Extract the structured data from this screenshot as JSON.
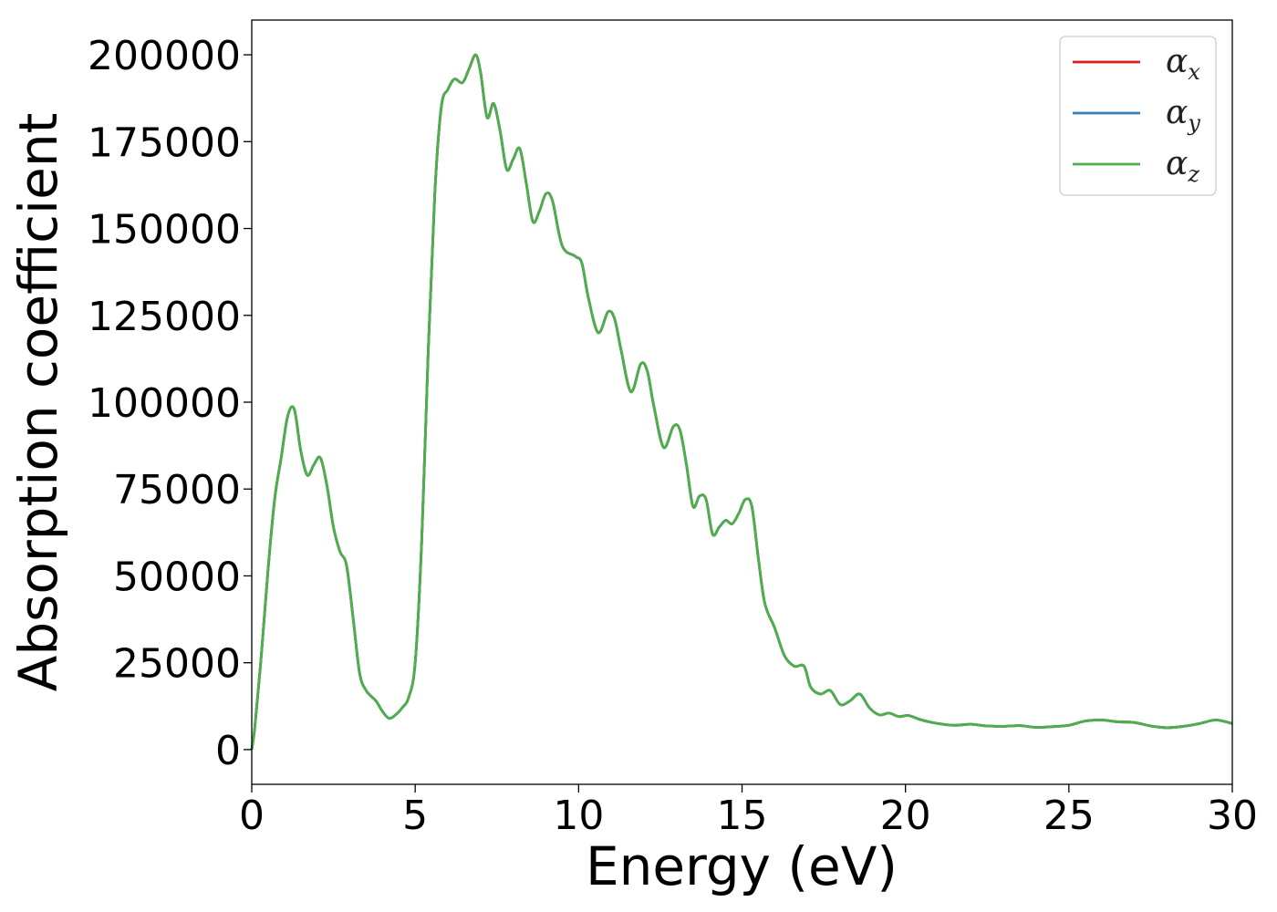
{
  "chart_data": {
    "type": "line",
    "xlabel": "Energy (eV)",
    "ylabel": "Absorption coefficient",
    "xlim": [
      0,
      30
    ],
    "ylim": [
      -10000,
      210000
    ],
    "xticks": [
      0,
      5,
      10,
      15,
      20,
      25,
      30
    ],
    "yticks": [
      0,
      25000,
      50000,
      75000,
      100000,
      125000,
      150000,
      175000,
      200000
    ],
    "grid": false,
    "legend_position": "top-right",
    "series": [
      {
        "name": "α",
        "subscript": "x",
        "color": "#e41a1c",
        "x": [
          0,
          0.1,
          0.3,
          0.5,
          0.7,
          0.9,
          1.1,
          1.3,
          1.5,
          1.7,
          1.9,
          2.1,
          2.3,
          2.5,
          2.7,
          2.9,
          3.1,
          3.3,
          3.5,
          3.8,
          4.0,
          4.2,
          4.4,
          4.6,
          4.8,
          5.0,
          5.2,
          5.4,
          5.6,
          5.8,
          6.0,
          6.2,
          6.45,
          6.65,
          6.85,
          7.0,
          7.2,
          7.4,
          7.6,
          7.8,
          8.0,
          8.2,
          8.4,
          8.6,
          8.8,
          9.0,
          9.2,
          9.5,
          9.9,
          10.1,
          10.3,
          10.6,
          10.9,
          11.1,
          11.3,
          11.6,
          11.9,
          12.1,
          12.3,
          12.6,
          12.9,
          13.1,
          13.3,
          13.5,
          13.7,
          13.9,
          14.1,
          14.3,
          14.5,
          14.7,
          14.9,
          15.1,
          15.3,
          15.5,
          15.7,
          16.0,
          16.3,
          16.6,
          16.9,
          17.1,
          17.4,
          17.7,
          18.0,
          18.3,
          18.6,
          18.9,
          19.2,
          19.5,
          19.8,
          20.1,
          20.5,
          21.0,
          21.5,
          22.0,
          22.5,
          23.0,
          23.5,
          24.0,
          24.5,
          25.0,
          25.5,
          26.0,
          26.5,
          27.0,
          27.5,
          28.0,
          28.5,
          29.0,
          29.5,
          30.0
        ],
        "y": [
          0,
          7000,
          28000,
          52000,
          72000,
          84000,
          96000,
          98000,
          86000,
          79000,
          82000,
          84000,
          76000,
          64000,
          57000,
          53000,
          38000,
          22000,
          17000,
          14000,
          11000,
          9000,
          10000,
          12000,
          15000,
          25000,
          60000,
          115000,
          160000,
          185000,
          190000,
          193000,
          192000,
          196000,
          200000,
          195000,
          182000,
          186000,
          178000,
          167000,
          170000,
          173000,
          163000,
          152000,
          155000,
          160000,
          158000,
          145000,
          142000,
          140000,
          130000,
          120000,
          126000,
          124000,
          115000,
          103000,
          111000,
          109000,
          99000,
          87000,
          93000,
          92000,
          82000,
          70000,
          73000,
          72000,
          62000,
          64000,
          66000,
          65000,
          68000,
          72000,
          70000,
          55000,
          42000,
          35000,
          27000,
          24000,
          24000,
          18000,
          16000,
          17000,
          13000,
          14000,
          16000,
          12000,
          10000,
          10500,
          9500,
          9800,
          8500,
          7500,
          7000,
          7300,
          6800,
          6700,
          6900,
          6400,
          6600,
          7000,
          8200,
          8500,
          8000,
          7800,
          6800,
          6300,
          6700,
          7500,
          8500,
          7500
        ]
      },
      {
        "name": "α",
        "subscript": "y",
        "color": "#377eb8",
        "x": [
          0,
          0.1,
          0.3,
          0.5,
          0.7,
          0.9,
          1.1,
          1.3,
          1.5,
          1.7,
          1.9,
          2.1,
          2.3,
          2.5,
          2.7,
          2.9,
          3.1,
          3.3,
          3.5,
          3.8,
          4.0,
          4.2,
          4.4,
          4.6,
          4.8,
          5.0,
          5.2,
          5.4,
          5.6,
          5.8,
          6.0,
          6.2,
          6.45,
          6.65,
          6.85,
          7.0,
          7.2,
          7.4,
          7.6,
          7.8,
          8.0,
          8.2,
          8.4,
          8.6,
          8.8,
          9.0,
          9.2,
          9.5,
          9.9,
          10.1,
          10.3,
          10.6,
          10.9,
          11.1,
          11.3,
          11.6,
          11.9,
          12.1,
          12.3,
          12.6,
          12.9,
          13.1,
          13.3,
          13.5,
          13.7,
          13.9,
          14.1,
          14.3,
          14.5,
          14.7,
          14.9,
          15.1,
          15.3,
          15.5,
          15.7,
          16.0,
          16.3,
          16.6,
          16.9,
          17.1,
          17.4,
          17.7,
          18.0,
          18.3,
          18.6,
          18.9,
          19.2,
          19.5,
          19.8,
          20.1,
          20.5,
          21.0,
          21.5,
          22.0,
          22.5,
          23.0,
          23.5,
          24.0,
          24.5,
          25.0,
          25.5,
          26.0,
          26.5,
          27.0,
          27.5,
          28.0,
          28.5,
          29.0,
          29.5,
          30.0
        ],
        "y": [
          0,
          7000,
          28000,
          52000,
          72000,
          84000,
          96000,
          98000,
          86000,
          79000,
          82000,
          84000,
          76000,
          64000,
          57000,
          53000,
          38000,
          22000,
          17000,
          14000,
          11000,
          9000,
          10000,
          12000,
          15000,
          25000,
          60000,
          115000,
          160000,
          185000,
          190000,
          193000,
          192000,
          196000,
          200000,
          195000,
          182000,
          186000,
          178000,
          167000,
          170000,
          173000,
          163000,
          152000,
          155000,
          160000,
          158000,
          145000,
          142000,
          140000,
          130000,
          120000,
          126000,
          124000,
          115000,
          103000,
          111000,
          109000,
          99000,
          87000,
          93000,
          92000,
          82000,
          70000,
          73000,
          72000,
          62000,
          64000,
          66000,
          65000,
          68000,
          72000,
          70000,
          55000,
          42000,
          35000,
          27000,
          24000,
          24000,
          18000,
          16000,
          17000,
          13000,
          14000,
          16000,
          12000,
          10000,
          10500,
          9500,
          9800,
          8500,
          7500,
          7000,
          7300,
          6800,
          6700,
          6900,
          6400,
          6600,
          7000,
          8200,
          8500,
          8000,
          7800,
          6800,
          6300,
          6700,
          7500,
          8500,
          7500
        ]
      },
      {
        "name": "α",
        "subscript": "z",
        "color": "#4daf4a",
        "x": [
          0,
          0.1,
          0.3,
          0.5,
          0.7,
          0.9,
          1.1,
          1.3,
          1.5,
          1.7,
          1.9,
          2.1,
          2.3,
          2.5,
          2.7,
          2.9,
          3.1,
          3.3,
          3.5,
          3.8,
          4.0,
          4.2,
          4.4,
          4.6,
          4.8,
          5.0,
          5.2,
          5.4,
          5.6,
          5.8,
          6.0,
          6.2,
          6.45,
          6.65,
          6.85,
          7.0,
          7.2,
          7.4,
          7.6,
          7.8,
          8.0,
          8.2,
          8.4,
          8.6,
          8.8,
          9.0,
          9.2,
          9.5,
          9.9,
          10.1,
          10.3,
          10.6,
          10.9,
          11.1,
          11.3,
          11.6,
          11.9,
          12.1,
          12.3,
          12.6,
          12.9,
          13.1,
          13.3,
          13.5,
          13.7,
          13.9,
          14.1,
          14.3,
          14.5,
          14.7,
          14.9,
          15.1,
          15.3,
          15.5,
          15.7,
          16.0,
          16.3,
          16.6,
          16.9,
          17.1,
          17.4,
          17.7,
          18.0,
          18.3,
          18.6,
          18.9,
          19.2,
          19.5,
          19.8,
          20.1,
          20.5,
          21.0,
          21.5,
          22.0,
          22.5,
          23.0,
          23.5,
          24.0,
          24.5,
          25.0,
          25.5,
          26.0,
          26.5,
          27.0,
          27.5,
          28.0,
          28.5,
          29.0,
          29.5,
          30.0
        ],
        "y": [
          0,
          7000,
          28000,
          52000,
          72000,
          84000,
          96000,
          98000,
          86000,
          79000,
          82000,
          84000,
          76000,
          64000,
          57000,
          53000,
          38000,
          22000,
          17000,
          14000,
          11000,
          9000,
          10000,
          12000,
          15000,
          25000,
          60000,
          115000,
          160000,
          185000,
          190000,
          193000,
          192000,
          196000,
          200000,
          195000,
          182000,
          186000,
          178000,
          167000,
          170000,
          173000,
          163000,
          152000,
          155000,
          160000,
          158000,
          145000,
          142000,
          140000,
          130000,
          120000,
          126000,
          124000,
          115000,
          103000,
          111000,
          109000,
          99000,
          87000,
          93000,
          92000,
          82000,
          70000,
          73000,
          72000,
          62000,
          64000,
          66000,
          65000,
          68000,
          72000,
          70000,
          55000,
          42000,
          35000,
          27000,
          24000,
          24000,
          18000,
          16000,
          17000,
          13000,
          14000,
          16000,
          12000,
          10000,
          10500,
          9500,
          9800,
          8500,
          7500,
          7000,
          7300,
          6800,
          6700,
          6900,
          6400,
          6600,
          7000,
          8200,
          8500,
          8000,
          7800,
          6800,
          6300,
          6700,
          7500,
          8500,
          7500
        ]
      }
    ]
  }
}
